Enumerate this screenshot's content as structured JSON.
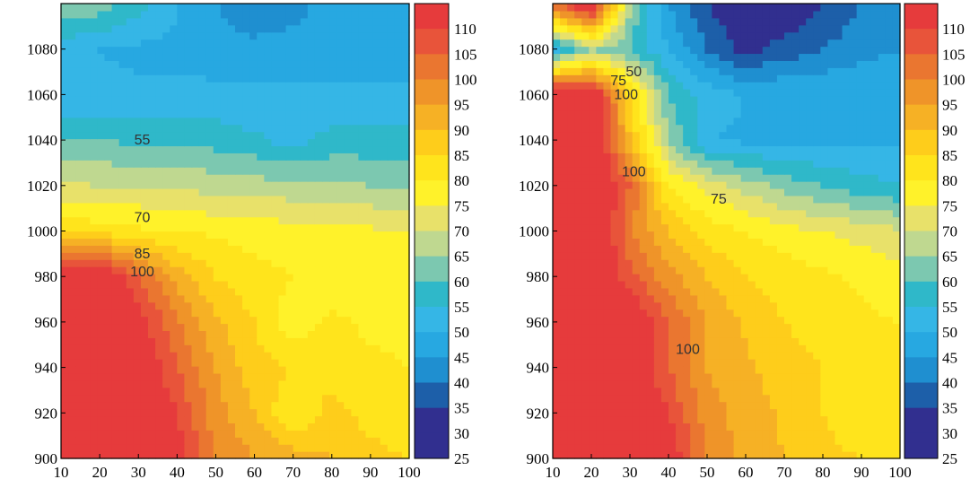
{
  "chart_data": [
    {
      "type": "heatmap",
      "subtype": "filled-contour",
      "title": "",
      "xlabel": "",
      "ylabel": "",
      "xlim": [
        10,
        100
      ],
      "ylim": [
        900,
        1100
      ],
      "x_ticks": [
        "10",
        "20",
        "30",
        "40",
        "50",
        "60",
        "70",
        "80",
        "90",
        "100"
      ],
      "y_ticks": [
        "900",
        "920",
        "940",
        "960",
        "980",
        "1000",
        "1020",
        "1040",
        "1060",
        "1080"
      ],
      "contour_labels": [
        {
          "text": "55",
          "x": 31,
          "y": 1040
        },
        {
          "text": "70",
          "x": 31,
          "y": 1006
        },
        {
          "text": "85",
          "x": 31,
          "y": 990
        },
        {
          "text": "100",
          "x": 31,
          "y": 982
        }
      ],
      "field": {
        "columns": [
          10,
          20,
          30,
          40,
          50,
          60,
          70,
          80,
          90,
          100
        ],
        "rows": [
          900,
          920,
          940,
          960,
          980,
          1000,
          1020,
          1040,
          1060,
          1080,
          1100
        ],
        "values": [
          [
            115,
            115,
            115,
            108,
            95,
            90,
            88,
            85,
            82,
            80
          ],
          [
            115,
            115,
            115,
            105,
            92,
            85,
            75,
            82,
            78,
            75
          ],
          [
            115,
            115,
            112,
            100,
            90,
            82,
            80,
            78,
            76,
            75
          ],
          [
            115,
            115,
            108,
            96,
            86,
            80,
            72,
            76,
            74,
            74
          ],
          [
            115,
            115,
            100,
            88,
            80,
            77,
            75,
            73,
            72,
            72
          ],
          [
            78,
            78,
            76,
            75,
            74,
            73,
            72,
            71,
            71,
            70
          ],
          [
            66,
            65,
            65,
            64,
            63,
            62,
            62,
            61,
            60,
            60
          ],
          [
            55,
            55,
            54,
            54,
            53,
            51,
            48,
            52,
            52,
            52
          ],
          [
            46,
            46,
            46,
            46,
            46,
            46,
            46,
            46,
            46,
            46
          ],
          [
            47,
            45,
            44,
            44,
            43,
            42,
            42,
            42,
            42,
            43
          ],
          [
            60,
            58,
            52,
            45,
            40,
            35,
            38,
            42,
            42,
            42
          ]
        ]
      },
      "colorbar": {
        "levels": [
          25,
          30,
          35,
          40,
          45,
          50,
          55,
          60,
          65,
          70,
          75,
          80,
          85,
          90,
          95,
          100,
          105,
          110
        ],
        "labels": [
          "110",
          "105",
          "100",
          "95",
          "90",
          "85",
          "80",
          "75",
          "70",
          "65",
          "60",
          "55",
          "50",
          "45",
          "40",
          "35",
          "30",
          "25"
        ]
      }
    },
    {
      "type": "heatmap",
      "subtype": "filled-contour",
      "title": "",
      "xlabel": "",
      "ylabel": "",
      "xlim": [
        10,
        100
      ],
      "ylim": [
        900,
        1100
      ],
      "x_ticks": [
        "10",
        "20",
        "30",
        "40",
        "50",
        "60",
        "70",
        "80",
        "90",
        "100"
      ],
      "y_ticks": [
        "900",
        "920",
        "940",
        "960",
        "980",
        "1000",
        "1020",
        "1040",
        "1060",
        "1080"
      ],
      "contour_labels": [
        {
          "text": "50",
          "x": 31,
          "y": 1070
        },
        {
          "text": "75",
          "x": 27,
          "y": 1066
        },
        {
          "text": "100",
          "x": 29,
          "y": 1060
        },
        {
          "text": "100",
          "x": 31,
          "y": 1026
        },
        {
          "text": "75",
          "x": 53,
          "y": 1014
        },
        {
          "text": "100",
          "x": 45,
          "y": 948
        }
      ],
      "field": {
        "columns": [
          10,
          20,
          30,
          40,
          50,
          60,
          70,
          80,
          90,
          100
        ],
        "rows": [
          900,
          920,
          940,
          960,
          980,
          1000,
          1020,
          1040,
          1060,
          1080,
          1100
        ],
        "values": [
          [
            115,
            115,
            115,
            110,
            95,
            88,
            85,
            82,
            80,
            78
          ],
          [
            115,
            115,
            115,
            105,
            92,
            88,
            84,
            80,
            75,
            75
          ],
          [
            115,
            115,
            112,
            100,
            90,
            86,
            82,
            80,
            78,
            76
          ],
          [
            115,
            115,
            112,
            100,
            90,
            84,
            80,
            78,
            76,
            75
          ],
          [
            115,
            115,
            102,
            92,
            85,
            80,
            78,
            76,
            74,
            72
          ],
          [
            115,
            115,
            96,
            85,
            78,
            75,
            72,
            70,
            68,
            66
          ],
          [
            115,
            115,
            100,
            75,
            68,
            63,
            58,
            55,
            52,
            50
          ],
          [
            110,
            115,
            85,
            60,
            45,
            44,
            44,
            44,
            44,
            44
          ],
          [
            115,
            115,
            80,
            55,
            48,
            45,
            45,
            45,
            45,
            45
          ],
          [
            45,
            60,
            55,
            45,
            35,
            28,
            32,
            35,
            38,
            40
          ],
          [
            100,
            115,
            60,
            40,
            30,
            25,
            25,
            30,
            35,
            38
          ]
        ]
      },
      "colorbar": {
        "levels": [
          25,
          30,
          35,
          40,
          45,
          50,
          55,
          60,
          65,
          70,
          75,
          80,
          85,
          90,
          95,
          100,
          105,
          110
        ],
        "labels": [
          "110",
          "105",
          "100",
          "95",
          "90",
          "85",
          "80",
          "75",
          "70",
          "65",
          "60",
          "55",
          "50",
          "45",
          "40",
          "35",
          "30",
          "25"
        ]
      }
    }
  ],
  "palette": [
    "#312f8f",
    "#1d5fa9",
    "#1f8fd0",
    "#27a8e1",
    "#35b6e6",
    "#2fb8c9",
    "#7cc8b0",
    "#bfd890",
    "#e8e16a",
    "#fff22a",
    "#ffe41c",
    "#fecd1b",
    "#f6b125",
    "#ef9429",
    "#ea7630",
    "#e8543a",
    "#e63b3c"
  ]
}
